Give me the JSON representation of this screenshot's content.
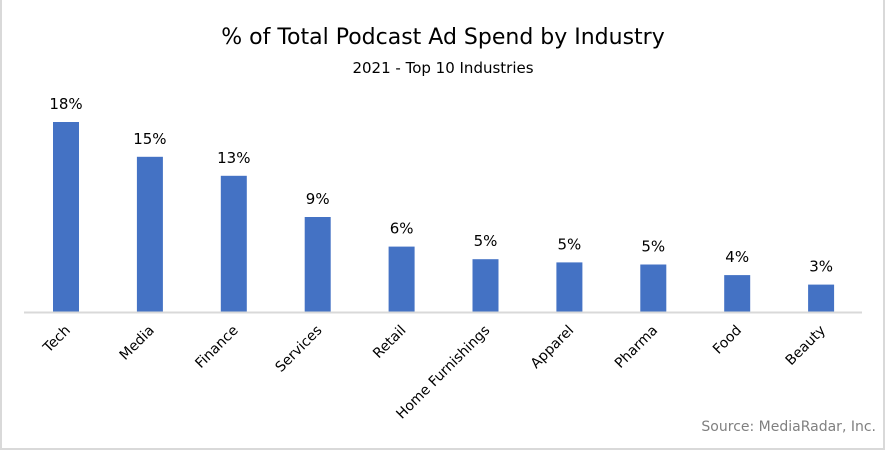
{
  "chart_data": {
    "type": "bar",
    "title": "% of Total Podcast Ad Spend by Industry",
    "subtitle": "2021 - Top 10 Industries",
    "xlabel": "",
    "ylabel": "",
    "ylim": [
      0,
      18
    ],
    "grid": false,
    "legend": "none",
    "categories": [
      "Tech",
      "Media",
      "Finance",
      "Services",
      "Retail",
      "Home Furnishings",
      "Apparel",
      "Pharma",
      "Food",
      "Beauty"
    ],
    "values": [
      18,
      14.7,
      12.9,
      9.0,
      6.2,
      5.0,
      4.7,
      4.5,
      3.5,
      2.6
    ],
    "data_labels": [
      "18%",
      "15%",
      "13%",
      "9%",
      "6%",
      "5%",
      "5%",
      "5%",
      "4%",
      "3%"
    ],
    "source": "Source: MediaRadar, Inc.",
    "colors": {
      "bar": "#4472c4",
      "axis": "#d9d9d9",
      "source_text": "#808080"
    }
  }
}
